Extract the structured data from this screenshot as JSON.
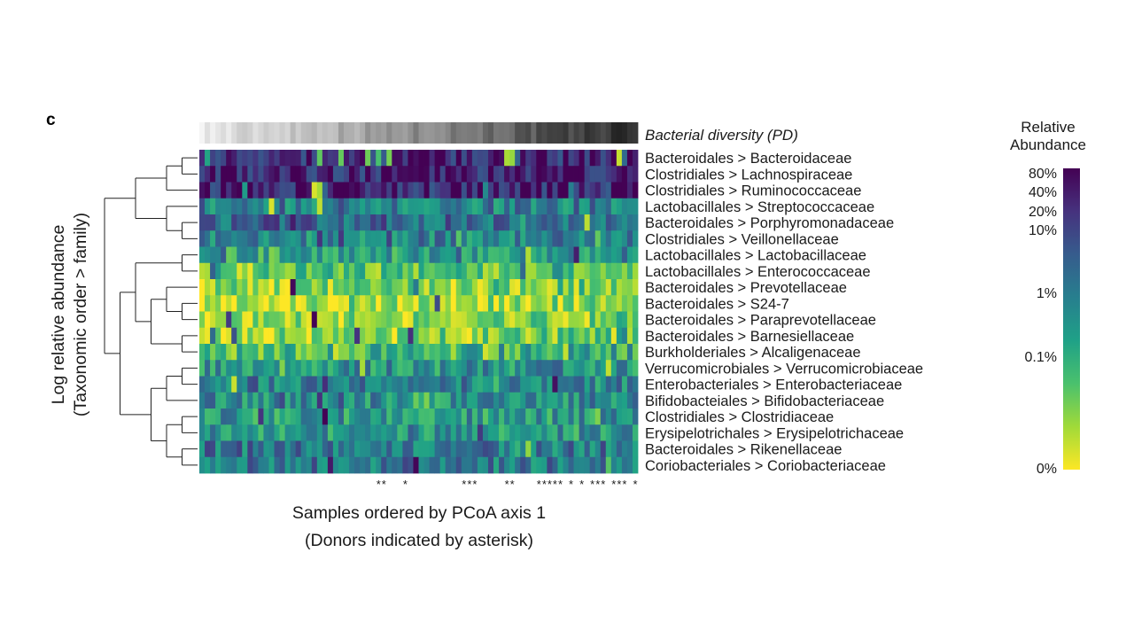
{
  "chart_data": {
    "type": "heatmap",
    "panel_label": "c",
    "diversity_label": "Bacterial diversity (PD)",
    "x_axis_label_line1": "Samples ordered by PCoA axis 1",
    "x_axis_label_line2": "(Donors indicated by asterisk)",
    "y_axis_label_line1": "Log relative abundance",
    "y_axis_label_line2": "(Taxonomic order > family)",
    "legend": {
      "title_line1": "Relative",
      "title_line2": "Abundance",
      "ticks": [
        "80%",
        "40%",
        "20%",
        "10%",
        "1%",
        "0.1%",
        "0%"
      ],
      "colormap": [
        "#fde725",
        "#a0da39",
        "#4ac16d",
        "#1fa187",
        "#277f8e",
        "#365c8d",
        "#46327e",
        "#440154"
      ]
    },
    "rows": [
      "Bacteroidales > Bacteroidaceae",
      "Clostridiales > Lachnospiraceae",
      "Clostridiales > Ruminococcaceae",
      "Lactobacillales > Streptococcaceae",
      "Bacteroidales > Porphyromonadaceae",
      "Clostridiales > Veillonellaceae",
      "Lactobacillales > Lactobacillaceae",
      "Lactobacillales > Enterococcaceae",
      "Bacteroidales > Prevotellaceae",
      "Bacteroidales > S24-7",
      "Bacteroidales > Paraprevotellaceae",
      "Bacteroidales > Barnesiellaceae",
      "Burkholderiales > Alcaligenaceae",
      "Verrucomicrobiales > Verrucomicrobiaceae",
      "Enterobacteriales > Enterobacteriaceae",
      "Bifidobacteiales > Bifidobacteriaceae",
      "Clostridiales > Clostridiaceae",
      "Erysipelotrichales > Erysipelotrichaceae",
      "Bacteroidales > Rikenellaceae",
      "Coriobacteriales > Coriobacteriaceae"
    ],
    "n_samples": 82,
    "row_base_levels": [
      0.86,
      0.93,
      0.92,
      0.58,
      0.66,
      0.55,
      0.4,
      0.22,
      0.13,
      0.05,
      0.1,
      0.14,
      0.27,
      0.5,
      0.55,
      0.52,
      0.47,
      0.47,
      0.6,
      0.6
    ],
    "diversity_trend": [
      0.04,
      0.9
    ],
    "donor_columns": [
      34,
      35,
      39,
      50,
      51,
      52,
      58,
      59,
      64,
      65,
      66,
      67,
      68,
      70,
      72,
      74,
      75,
      76,
      78,
      79,
      80,
      82
    ]
  }
}
